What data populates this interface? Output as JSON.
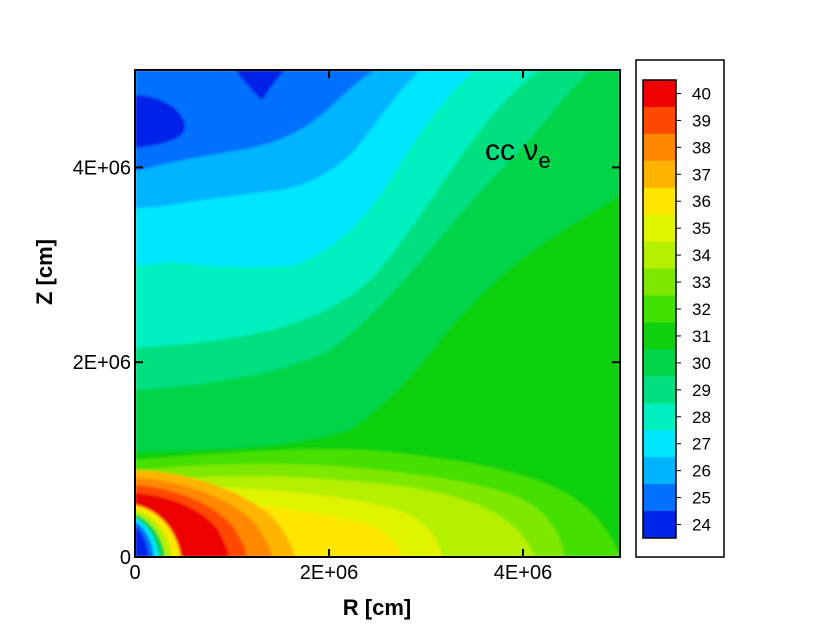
{
  "chart_data": {
    "type": "heatmap",
    "xlabel": "R [cm]",
    "ylabel": "Z [cm]",
    "xlim": [
      0,
      5000000
    ],
    "ylim": [
      0,
      5000000
    ],
    "x_ticks": [
      {
        "value": 0,
        "label": "0"
      },
      {
        "value": 2000000,
        "label": "2E+06"
      },
      {
        "value": 4000000,
        "label": "4E+06"
      }
    ],
    "y_ticks": [
      {
        "value": 0,
        "label": "0"
      },
      {
        "value": 2000000,
        "label": "2E+06"
      },
      {
        "value": 4000000,
        "label": "4E+06"
      }
    ],
    "annotation": {
      "prefix": "cc ",
      "symbol": "ν",
      "subscript": "e"
    },
    "colorbar": {
      "levels": [
        40,
        39,
        38,
        37,
        36,
        35,
        34,
        33,
        32,
        31,
        30,
        29,
        28,
        27,
        26,
        25,
        24
      ],
      "labels": [
        "40",
        "39",
        "38",
        "37",
        "36",
        "35",
        "34",
        "33",
        "32",
        "31",
        "30",
        "29",
        "28",
        "27",
        "26",
        "25",
        "24"
      ],
      "colors": [
        "#ee0000",
        "#ff4800",
        "#ff8800",
        "#ffb400",
        "#ffe600",
        "#e0f400",
        "#b4f000",
        "#7ee800",
        "#44e000",
        "#10d010",
        "#00d44a",
        "#00e080",
        "#00f0c0",
        "#00e6ff",
        "#00b4ff",
        "#0070ff",
        "#0024e8"
      ]
    }
  }
}
